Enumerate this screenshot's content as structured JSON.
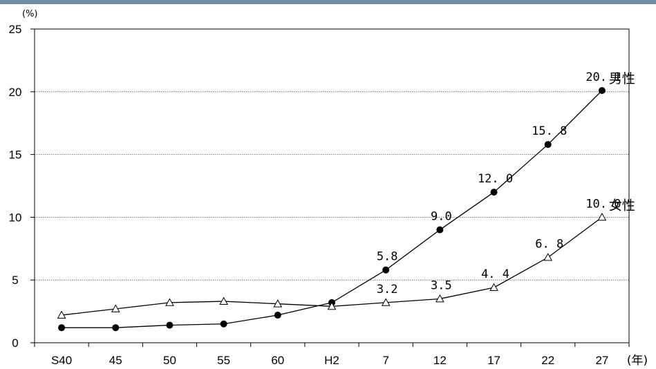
{
  "chart_data": {
    "type": "line",
    "ylabel": "(%)",
    "xlabel": "(年)",
    "ylim": [
      0,
      25
    ],
    "yticks": [
      0,
      5,
      10,
      15,
      20,
      25
    ],
    "categories": [
      "S40",
      "45",
      "50",
      "55",
      "60",
      "H2",
      "7",
      "12",
      "17",
      "22",
      "27"
    ],
    "grid": true,
    "series": [
      {
        "name": "男性",
        "marker": "filled-circle",
        "color": "#000000",
        "values": [
          1.2,
          1.2,
          1.4,
          1.5,
          2.2,
          3.2,
          5.8,
          9.0,
          12.0,
          15.8,
          20.1
        ],
        "data_labels": [
          "",
          "",
          "",
          "",
          "",
          "",
          "5.8",
          "9.0",
          "12. 0",
          "15. 8",
          "20. 1"
        ]
      },
      {
        "name": "女性",
        "marker": "open-triangle",
        "color": "#000000",
        "values": [
          2.2,
          2.7,
          3.2,
          3.3,
          3.1,
          2.9,
          3.2,
          3.5,
          4.4,
          6.8,
          10.0
        ],
        "data_labels": [
          "",
          "",
          "",
          "",
          "",
          "",
          "3.2",
          "3.5",
          "4. 4",
          "6. 8",
          "10. 0"
        ]
      }
    ]
  }
}
